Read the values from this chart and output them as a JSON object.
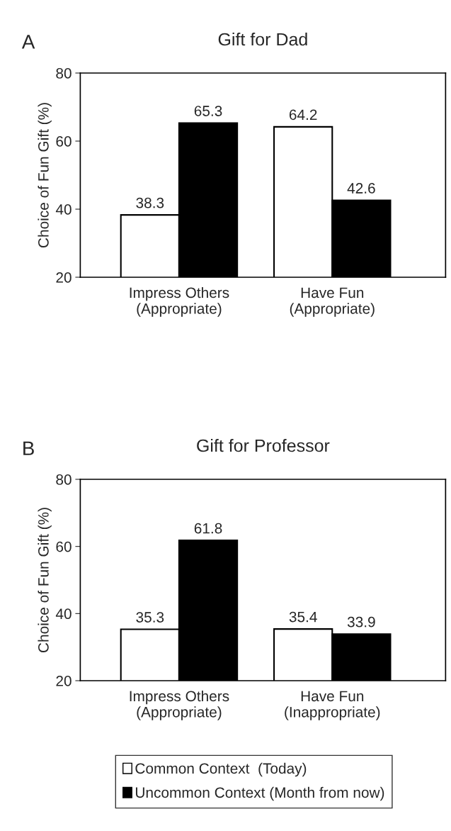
{
  "chart_data": [
    {
      "type": "bar",
      "title": "Gift for Dad",
      "ylabel": "Choice of Fun Gift (%)",
      "annotations": [
        "A"
      ],
      "categories": [
        "Impress Others\n(Appropriate)",
        "Have Fun\n(Appropriate)"
      ],
      "series": [
        {
          "color": "#ffffff",
          "values": [
            38.3,
            64.2
          ]
        },
        {
          "color": "#000000",
          "values": [
            65.3,
            42.6
          ]
        }
      ],
      "ylim": [
        20,
        80
      ],
      "yticks": [
        20,
        40,
        60,
        80
      ],
      "data_labels": true,
      "grid": false
    },
    {
      "type": "bar",
      "title": "Gift for Professor",
      "ylabel": "Choice of Fun Gift (%)",
      "annotations": [
        "B"
      ],
      "categories": [
        "Impress Others\n(Appropriate)",
        "Have Fun\n(Inappropriate)"
      ],
      "series": [
        {
          "name": "Common Context  (Today)",
          "color": "#ffffff",
          "values": [
            35.3,
            35.4
          ]
        },
        {
          "name": "Uncommon Context (Month from now)",
          "color": "#000000",
          "values": [
            61.8,
            33.9
          ]
        }
      ],
      "ylim": [
        20,
        80
      ],
      "yticks": [
        20,
        40,
        60,
        80
      ],
      "data_labels": true,
      "grid": false,
      "legend": "bottom"
    }
  ]
}
